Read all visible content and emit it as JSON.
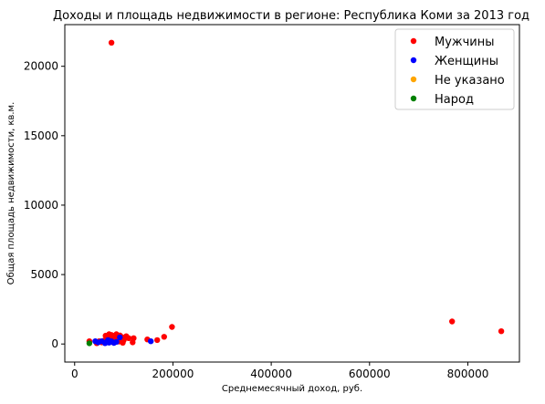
{
  "chart_data": {
    "type": "scatter",
    "title": "Доходы и площадь недвижимости в регионе: Республика Коми за 2013 год",
    "xlabel": "Среднемесячный доход, руб.",
    "ylabel": "Общая площадь недвижимости, кв.м.",
    "xlim": [
      -20000,
      905000
    ],
    "ylim": [
      -1300,
      23000
    ],
    "xticks": [
      {
        "value": 0,
        "label": "0"
      },
      {
        "value": 200000,
        "label": "200000"
      },
      {
        "value": 400000,
        "label": "400000"
      },
      {
        "value": 600000,
        "label": "600000"
      },
      {
        "value": 800000,
        "label": "800000"
      }
    ],
    "yticks": [
      {
        "value": 0,
        "label": "0"
      },
      {
        "value": 5000,
        "label": "5000"
      },
      {
        "value": 10000,
        "label": "10000"
      },
      {
        "value": 15000,
        "label": "15000"
      },
      {
        "value": 20000,
        "label": "20000"
      }
    ],
    "legend_position": "top-right",
    "grid": false,
    "series": [
      {
        "name": "Мужчины",
        "color": "#ff0000",
        "points": [
          {
            "x": 75000,
            "y": 21700
          },
          {
            "x": 768000,
            "y": 1620
          },
          {
            "x": 868000,
            "y": 920
          },
          {
            "x": 198000,
            "y": 1230
          },
          {
            "x": 182000,
            "y": 520
          },
          {
            "x": 168000,
            "y": 280
          },
          {
            "x": 148000,
            "y": 330
          },
          {
            "x": 120000,
            "y": 420
          },
          {
            "x": 118000,
            "y": 120
          },
          {
            "x": 110000,
            "y": 420
          },
          {
            "x": 105000,
            "y": 560
          },
          {
            "x": 100000,
            "y": 280
          },
          {
            "x": 98000,
            "y": 90
          },
          {
            "x": 95000,
            "y": 520
          },
          {
            "x": 92000,
            "y": 620
          },
          {
            "x": 90000,
            "y": 180
          },
          {
            "x": 88000,
            "y": 400
          },
          {
            "x": 85000,
            "y": 700
          },
          {
            "x": 82000,
            "y": 300
          },
          {
            "x": 80000,
            "y": 450
          },
          {
            "x": 78000,
            "y": 120
          },
          {
            "x": 75000,
            "y": 650
          },
          {
            "x": 72000,
            "y": 350
          },
          {
            "x": 70000,
            "y": 700
          },
          {
            "x": 68000,
            "y": 150
          },
          {
            "x": 65000,
            "y": 400
          },
          {
            "x": 63000,
            "y": 600
          },
          {
            "x": 60000,
            "y": 250
          },
          {
            "x": 55000,
            "y": 120
          },
          {
            "x": 50000,
            "y": 200
          },
          {
            "x": 45000,
            "y": 60
          },
          {
            "x": 30000,
            "y": 200
          }
        ]
      },
      {
        "name": "Женщины",
        "color": "#0000ff",
        "points": [
          {
            "x": 155000,
            "y": 200
          },
          {
            "x": 92000,
            "y": 480
          },
          {
            "x": 85000,
            "y": 150
          },
          {
            "x": 80000,
            "y": 80
          },
          {
            "x": 75000,
            "y": 200
          },
          {
            "x": 70000,
            "y": 100
          },
          {
            "x": 68000,
            "y": 280
          },
          {
            "x": 65000,
            "y": 150
          },
          {
            "x": 62000,
            "y": 60
          },
          {
            "x": 55000,
            "y": 200
          },
          {
            "x": 48000,
            "y": 120
          },
          {
            "x": 42000,
            "y": 200
          }
        ]
      },
      {
        "name": "Не указано",
        "color": "#ffa500",
        "points": []
      },
      {
        "name": "Народ",
        "color": "#008000",
        "points": [
          {
            "x": 30000,
            "y": 50
          }
        ]
      }
    ]
  }
}
